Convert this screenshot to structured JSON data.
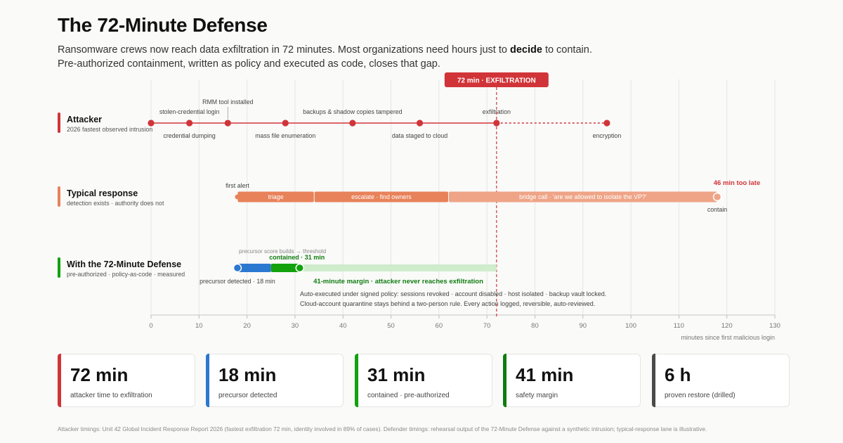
{
  "title": "The 72-Minute Defense",
  "subtitle": {
    "line1_pre": "Ransomware crews now reach data exfiltration in 72 minutes. Most organizations need hours just to",
    "line1_bold": "decide",
    "line1_post": "to contain.",
    "line2": "Pre-authorized containment, written as policy and executed as code, closes that gap."
  },
  "colors": {
    "attacker": "#d13438",
    "typical": "#e8825a",
    "typical_light": "#efa487",
    "defense_blue": "#2b78d0",
    "defense_green": "#13a10e",
    "defense_dark_green": "#107c10",
    "margin_fill": "#cfeccc",
    "restore": "#4a4a4a"
  },
  "chart_data": {
    "type": "timeline",
    "xlabel": "minutes since first malicious login",
    "xlim": [
      0,
      130
    ],
    "xticks": [
      0,
      10,
      20,
      30,
      40,
      50,
      60,
      70,
      80,
      90,
      100,
      110,
      120,
      130
    ],
    "marker": {
      "x": 72,
      "label": "72 min · EXFILTRATION"
    },
    "lanes": {
      "attacker": {
        "title": "Attacker",
        "subtitle": "2026 fastest observed intrusion",
        "events": [
          {
            "x": 0,
            "label": ""
          },
          {
            "x": 8,
            "label": "stolen-credential login"
          },
          {
            "x": 8,
            "label": "credential dumping"
          },
          {
            "x": 16,
            "label": "RMM tool installed"
          },
          {
            "x": 28,
            "label": "mass file enumeration"
          },
          {
            "x": 42,
            "label": "backups & shadow copies tampered"
          },
          {
            "x": 56,
            "label": "data staged to cloud"
          },
          {
            "x": 72,
            "label": "exfiltration"
          },
          {
            "x": 95,
            "label": "encryption"
          }
        ]
      },
      "typical": {
        "title": "Typical response",
        "subtitle": "detection exists · authority does not",
        "start_label": "first alert",
        "segments": [
          {
            "start": 18,
            "end": 34,
            "label": "triage"
          },
          {
            "start": 34,
            "end": 62,
            "label": "escalate · find owners"
          },
          {
            "start": 62,
            "end": 118,
            "label": "bridge call · 'are we allowed to isolate the VP?'"
          }
        ],
        "end": {
          "x": 118,
          "label": "contain",
          "note": "46 min too late"
        }
      },
      "defense": {
        "title": "With the 72-Minute Defense",
        "subtitle": "pre-authorized · policy-as-code · measured",
        "detect": {
          "x": 18,
          "label": "precursor detected · 18 min"
        },
        "build": {
          "start": 18,
          "end": 25,
          "label": "precursor score builds → threshold"
        },
        "contain": {
          "start": 25,
          "end": 31,
          "label": "contained · 31 min"
        },
        "margin": {
          "start": 31,
          "end": 72,
          "label": "41-minute margin · attacker never reaches exfiltration"
        },
        "note_line1": "Auto-executed under signed policy: sessions revoked · account disabled · host isolated · backup vault locked.",
        "note_line2": "Cloud-account quarantine stays behind a two-person rule. Every action logged, reversible, auto-reviewed."
      }
    }
  },
  "cards": [
    {
      "value": "72 min",
      "label": "attacker time to exfiltration",
      "color": "#d13438"
    },
    {
      "value": "18 min",
      "label": "precursor detected",
      "color": "#2b78d0"
    },
    {
      "value": "31 min",
      "label": "contained · pre-authorized",
      "color": "#13a10e"
    },
    {
      "value": "41 min",
      "label": "safety margin",
      "color": "#107c10"
    },
    {
      "value": "6 h",
      "label": "proven restore (drilled)",
      "color": "#4a4a4a"
    }
  ],
  "footnote": "Attacker timings: Unit 42 Global Incident Response Report 2026 (fastest exfiltration 72 min, identity involved in 89% of cases). Defender timings: rehearsal output of the 72-Minute Defense against a synthetic intrusion; typical-response lane is illustrative."
}
